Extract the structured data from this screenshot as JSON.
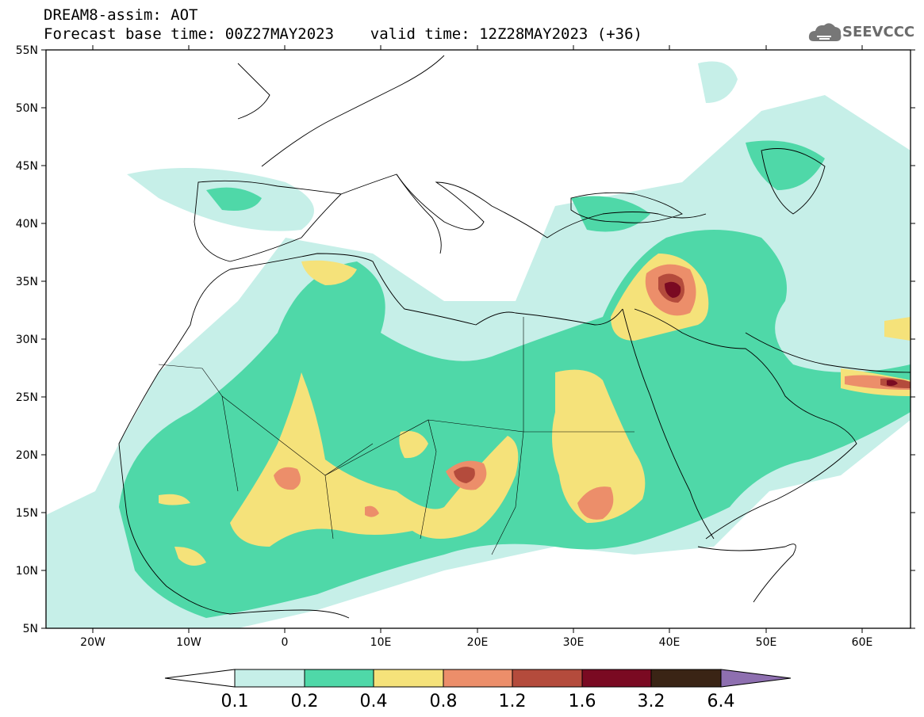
{
  "header": {
    "line1": "DREAM8-assim: AOT",
    "line2": "Forecast base time: 00Z27MAY2023    valid time: 12Z28MAY2023 (+36)",
    "logo_text": "SEEVCCC",
    "logo_icon": "cloud-icon"
  },
  "axes": {
    "lat_labels": [
      "55N",
      "50N",
      "45N",
      "40N",
      "35N",
      "30N",
      "25N",
      "20N",
      "15N",
      "10N",
      "5N"
    ],
    "lon_labels": [
      "20W",
      "10W",
      "0",
      "10E",
      "20E",
      "30E",
      "40E",
      "50E",
      "60E"
    ]
  },
  "colorbar": {
    "labels": [
      "0.1",
      "0.2",
      "0.4",
      "0.8",
      "1.2",
      "1.6",
      "3.2",
      "6.4"
    ],
    "colors": [
      "#ffffff",
      "#c6efe8",
      "#4fd8a8",
      "#f5e27a",
      "#ec8e6a",
      "#b44b3c",
      "#7a0a22",
      "#3a2415",
      "#8e6fb0"
    ]
  }
}
